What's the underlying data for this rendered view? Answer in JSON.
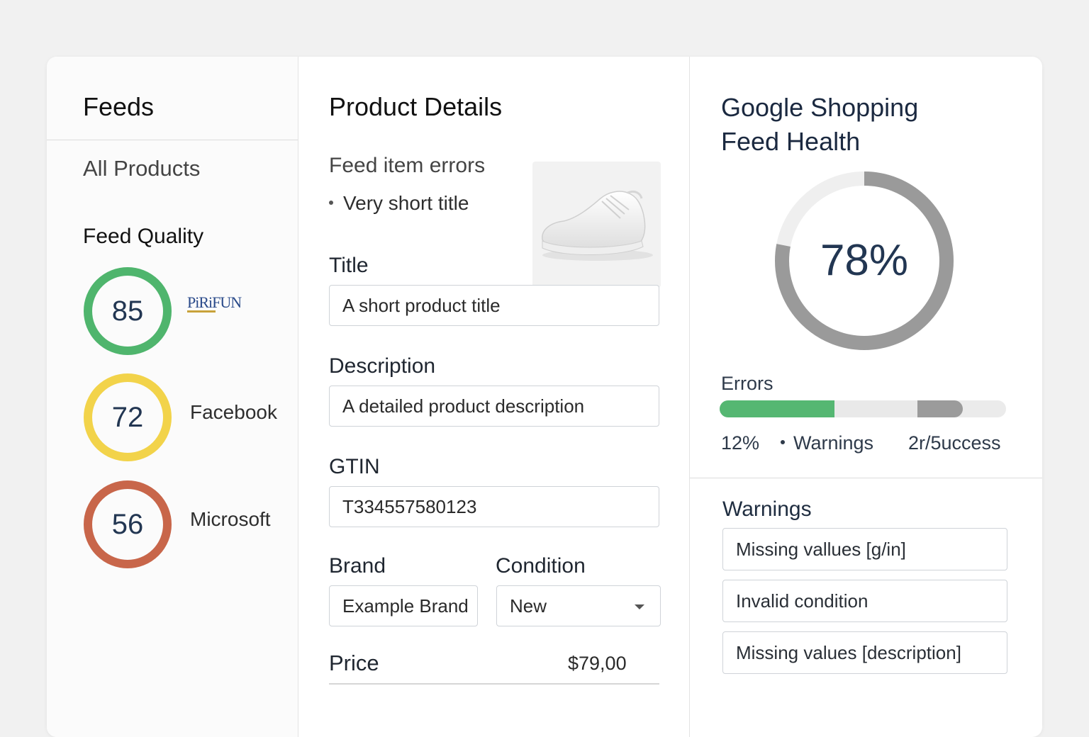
{
  "feeds": {
    "title": "Feeds",
    "all_products": "All Products",
    "quality_title": "Feed Quality",
    "scores": [
      {
        "value": 85,
        "label": "85",
        "channel": "",
        "color": "#4fb56d"
      },
      {
        "value": 72,
        "label": "72",
        "channel": "Facebook",
        "color": "#f2d34a"
      },
      {
        "value": 56,
        "label": "56",
        "channel": "Microsoft",
        "color": "#c8664a"
      }
    ],
    "logo_text": "PIRIFUN"
  },
  "product": {
    "title": "Product Details",
    "errors_label": "Feed item errors",
    "errors": [
      "Very short title"
    ],
    "fields": {
      "title_label": "Title",
      "title_value": "A short product title",
      "description_label": "Description",
      "description_value": "A detailed product description",
      "gtin_label": "GTIN",
      "gtin_value": "T334557580123",
      "brand_label": "Brand",
      "brand_value": "Example Brand",
      "condition_label": "Condition",
      "condition_value": "New",
      "price_label": "Price",
      "price_value": "$79,00"
    },
    "image_icon": "sneaker-image"
  },
  "health": {
    "title_line1": "Google Shopping",
    "title_line2": "Feed Health",
    "percent": 78,
    "percent_label": "78%",
    "errors_label": "Errors",
    "bar_segments": [
      {
        "fraction": 0.4,
        "color": "#55b772"
      },
      {
        "fraction": 0.29,
        "color": "#e9e9e9"
      },
      {
        "fraction": 0.16,
        "color": "#9b9b9b"
      }
    ],
    "stat_errors": "12%",
    "stat_warnings": "Warnings",
    "stat_success": "2r/5uccess",
    "warnings_title": "Warnings",
    "warnings": [
      "Missing vallues   [g/in]",
      "Invalid condition",
      "Missing values [description]"
    ]
  },
  "colors": {
    "donut_fill": "#9a9a9a",
    "donut_track": "#efefef"
  }
}
